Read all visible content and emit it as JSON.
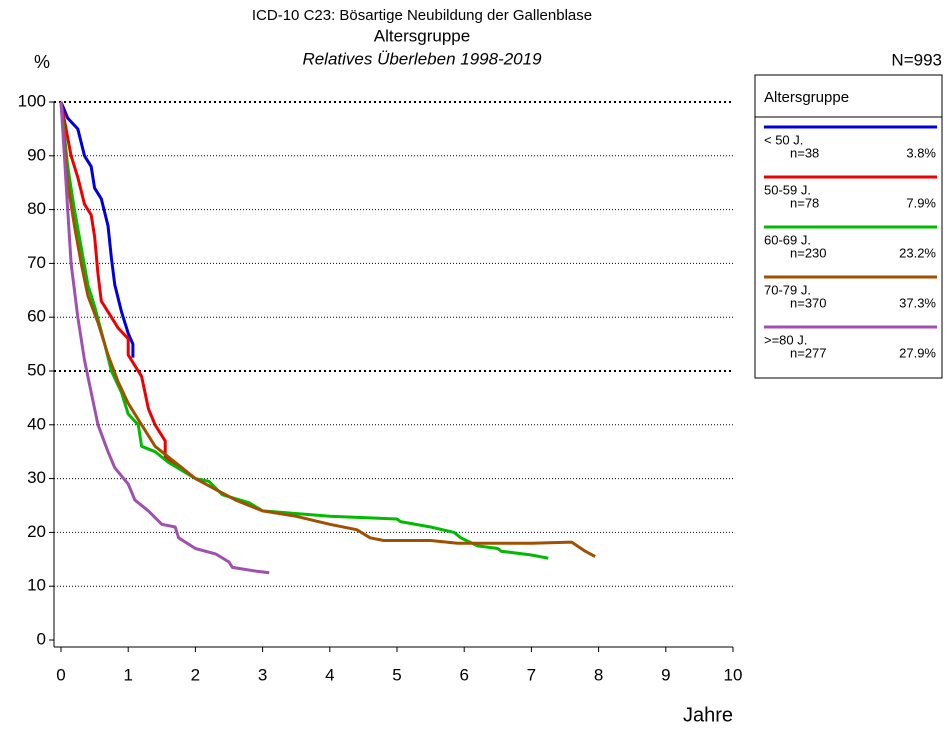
{
  "chart_data": {
    "type": "line",
    "title": "ICD-10 C23: Bösartige Neubildung der Gallenblase",
    "title2": "Altersgruppe",
    "subtitle": "Relatives Überleben 1998-2019",
    "y_label": "%",
    "x_label": "Jahre",
    "total": "N=993",
    "legend_title": "Altersgruppe",
    "xlim": [
      0,
      10
    ],
    "xticks": [
      0,
      1,
      2,
      3,
      4,
      5,
      6,
      7,
      8,
      9,
      10
    ],
    "ylim": [
      0,
      100
    ],
    "yticks": [
      0,
      10,
      20,
      30,
      40,
      50,
      60,
      70,
      80,
      90,
      100
    ],
    "grid": true,
    "major_gridlines": [
      50,
      100
    ],
    "series": [
      {
        "name": "< 50 J.",
        "n": "n=38",
        "share": "3.8%",
        "color": "#0000dd",
        "x": [
          0,
          0.1,
          0.25,
          0.35,
          0.45,
          0.5,
          0.6,
          0.7,
          0.75,
          0.8,
          0.9,
          1.0,
          1.07,
          1.07
        ],
        "values": [
          100,
          97,
          95,
          90,
          88,
          84,
          82,
          77,
          71,
          66,
          61,
          57,
          55,
          52.5
        ]
      },
      {
        "name": "50-59 J.",
        "n": "n=78",
        "share": "7.9%",
        "color": "#ee0000",
        "x": [
          0,
          0.15,
          0.25,
          0.35,
          0.45,
          0.5,
          0.55,
          0.6,
          0.75,
          0.85,
          1.0,
          1.0,
          1.2,
          1.3,
          1.4,
          1.55,
          1.55,
          1.7,
          1.8
        ],
        "values": [
          100,
          90,
          86,
          81,
          79,
          75,
          68,
          63,
          60,
          58,
          56,
          53,
          49,
          43,
          40,
          37,
          34,
          32.5,
          32
        ]
      },
      {
        "name": "60-69 J.",
        "n": "n=230",
        "share": "23.2%",
        "color": "#00bb00",
        "x": [
          0,
          0.1,
          0.2,
          0.3,
          0.4,
          0.5,
          0.65,
          0.75,
          0.9,
          1.0,
          1.15,
          1.2,
          1.4,
          1.6,
          1.8,
          2.0,
          2.2,
          2.4,
          2.8,
          3.0,
          4.0,
          5.0,
          5.05,
          5.5,
          5.85,
          5.95,
          6.2,
          6.5,
          6.55,
          7.0,
          7.25
        ],
        "values": [
          100,
          88,
          80,
          73,
          66,
          62,
          55,
          50,
          46,
          42,
          40,
          36,
          35,
          33,
          31.5,
          30,
          29.5,
          27,
          25.5,
          24,
          23,
          22.5,
          22,
          21,
          20,
          19,
          17.5,
          17,
          16.5,
          15.8,
          15.2
        ]
      },
      {
        "name": "70-79 J.",
        "n": "n=370",
        "share": "37.3%",
        "color": "#a05000",
        "x": [
          0,
          0.1,
          0.2,
          0.3,
          0.4,
          0.55,
          0.7,
          0.85,
          1.0,
          1.2,
          1.4,
          1.6,
          1.8,
          2.0,
          2.3,
          2.6,
          3.0,
          3.5,
          4.0,
          4.4,
          4.6,
          4.8,
          5.5,
          5.9,
          7.0,
          7.6,
          7.8,
          7.95
        ],
        "values": [
          100,
          85,
          77,
          70,
          64,
          59,
          53,
          48,
          44,
          40,
          36,
          34,
          32,
          30,
          28,
          26,
          24,
          23,
          21.5,
          20.5,
          19,
          18.5,
          18.5,
          18,
          18,
          18.2,
          16.5,
          15.5
        ]
      },
      {
        "name": ">=80 J.",
        "n": "n=277",
        "share": "27.9%",
        "color": "#a050b0",
        "x": [
          0,
          0.05,
          0.1,
          0.15,
          0.25,
          0.35,
          0.45,
          0.55,
          0.7,
          0.8,
          1.0,
          1.1,
          1.3,
          1.5,
          1.7,
          1.75,
          2.0,
          2.3,
          2.5,
          2.55,
          2.9,
          3.1
        ],
        "values": [
          100,
          90,
          80,
          70,
          60,
          52,
          46,
          40,
          35,
          32,
          29,
          26,
          24,
          21.5,
          21,
          19,
          17,
          16,
          14.5,
          13.5,
          12.8,
          12.5
        ]
      }
    ]
  }
}
